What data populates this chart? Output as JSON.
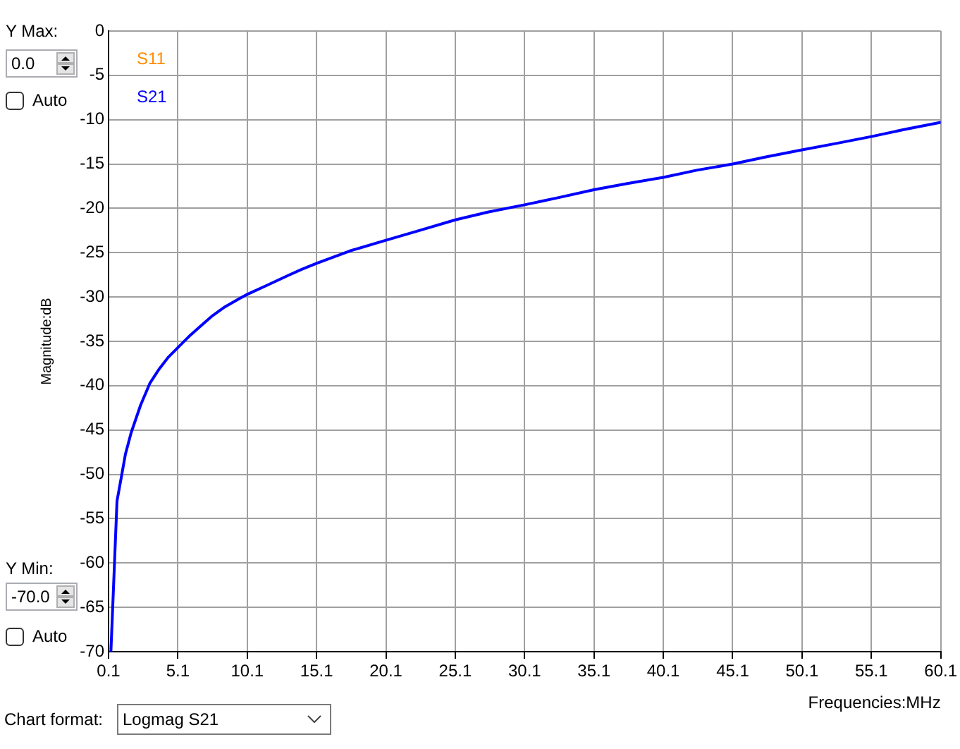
{
  "chart_data": {
    "type": "line",
    "xlabel": "Frequencies:MHz",
    "ylabel": "Magnitude:dB",
    "x": [
      0.27,
      0.71,
      1.0,
      1.32,
      1.73,
      2.41,
      3.09,
      3.76,
      4.4,
      5.1,
      6.0,
      6.8,
      7.6,
      8.5,
      9.5,
      10.1,
      11.5,
      13,
      14,
      15.1,
      17.5,
      20.1,
      22.5,
      25.1,
      27.5,
      30.1,
      32.5,
      35.1,
      37.5,
      40.1,
      42.5,
      45.1,
      47.5,
      50.1,
      52.5,
      55.1,
      57.5,
      60.1
    ],
    "series": [
      {
        "name": "S11",
        "color": "#ff8c00",
        "values": [
          null,
          null,
          null,
          null,
          null,
          null,
          null,
          null,
          null,
          null,
          null,
          null,
          null,
          null,
          null,
          null,
          null,
          null,
          null,
          null,
          null,
          null,
          null,
          null,
          null,
          null,
          null,
          null,
          null,
          null,
          null,
          null,
          null,
          null,
          null,
          null,
          null,
          null
        ]
      },
      {
        "name": "S21",
        "color": "#0000ff",
        "values": [
          -70,
          -53.0,
          -50.5,
          -47.7,
          -45.3,
          -42.2,
          -39.7,
          -38.1,
          -36.8,
          -35.7,
          -34.3,
          -33.2,
          -32.1,
          -31.1,
          -30.2,
          -29.7,
          -28.7,
          -27.6,
          -26.9,
          -26.2,
          -24.8,
          -23.6,
          -22.5,
          -21.3,
          -20.4,
          -19.6,
          -18.8,
          -17.9,
          -17.2,
          -16.5,
          -15.7,
          -15.0,
          -14.2,
          -13.4,
          -12.7,
          -11.9,
          -11.1,
          -10.3
        ]
      }
    ],
    "xlim": [
      0.1,
      60.1
    ],
    "xticks": [
      0.1,
      5.1,
      10.1,
      15.1,
      20.1,
      25.1,
      30.1,
      35.1,
      40.1,
      45.1,
      50.1,
      55.1,
      60.1
    ],
    "ylim": [
      -70,
      0
    ],
    "yticks": [
      -70,
      -65,
      -60,
      -55,
      -50,
      -45,
      -40,
      -35,
      -30,
      -25,
      -20,
      -15,
      -10,
      -5,
      0
    ],
    "grid": true,
    "legend": "top left",
    "marker": "none",
    "line_style": "solid",
    "annotations": [
      "Y Max:",
      "0.0",
      "Auto",
      "Y Min:",
      "-70.0",
      "Auto",
      "Chart format:",
      "Logmag S21"
    ]
  }
}
